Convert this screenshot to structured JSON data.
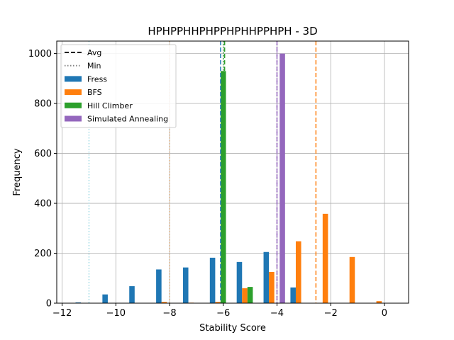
{
  "chart_data": {
    "type": "bar",
    "title": "HPHPPHHPHPPHPHHPPHPH - 3D",
    "xlabel": "Stability Score",
    "ylabel": "Frequency",
    "xlim": [
      -12.2,
      0.9
    ],
    "ylim": [
      0,
      1050
    ],
    "xticks": [
      -12,
      -10,
      -8,
      -6,
      -4,
      -2,
      0
    ],
    "xtick_labels": [
      "−12",
      "−10",
      "−8",
      "−6",
      "−4",
      "−2",
      "0"
    ],
    "yticks": [
      0,
      200,
      400,
      600,
      800,
      1000
    ],
    "ytick_labels": [
      "0",
      "200",
      "400",
      "600",
      "800",
      "1000"
    ],
    "grid": true,
    "legend_position": "top-left",
    "legend": {
      "avg_label": "Avg",
      "min_label": "Min"
    },
    "series": [
      {
        "name": "Fress",
        "color": "#1f77b4",
        "bars": [
          {
            "x": -11.4,
            "y": 3
          },
          {
            "x": -10.4,
            "y": 35
          },
          {
            "x": -9.4,
            "y": 68
          },
          {
            "x": -8.4,
            "y": 135
          },
          {
            "x": -7.4,
            "y": 143
          },
          {
            "x": -6.4,
            "y": 182
          },
          {
            "x": -5.4,
            "y": 165
          },
          {
            "x": -4.4,
            "y": 205
          },
          {
            "x": -3.4,
            "y": 63
          }
        ],
        "avg": -6.1,
        "min": -11.0,
        "avg_color": "#1f77b4",
        "min_color": "#9edae5"
      },
      {
        "name": "BFS",
        "color": "#ff7f0e",
        "bars": [
          {
            "x": -8.2,
            "y": 5
          },
          {
            "x": -7.2,
            "y": 2
          },
          {
            "x": -6.2,
            "y": 5
          },
          {
            "x": -5.2,
            "y": 60
          },
          {
            "x": -4.2,
            "y": 125
          },
          {
            "x": -3.2,
            "y": 248
          },
          {
            "x": -2.2,
            "y": 358
          },
          {
            "x": -1.2,
            "y": 185
          },
          {
            "x": -0.2,
            "y": 8
          }
        ],
        "avg": -2.55,
        "min": -8.0,
        "avg_color": "#ff7f0e",
        "min_color": "#e0b080"
      },
      {
        "name": "Hill Climber",
        "color": "#2ca02c",
        "bars": [
          {
            "x": -6.0,
            "y": 930
          },
          {
            "x": -5.0,
            "y": 65
          }
        ],
        "avg": -5.95,
        "min": -6.0,
        "avg_color": "#2ca02c",
        "min_color": "#2ca02c"
      },
      {
        "name": "Simulated Annealing",
        "color": "#9467bd",
        "bars": [
          {
            "x": -3.8,
            "y": 1000
          }
        ],
        "avg": -4.0,
        "min": -4.0,
        "avg_color": "#9467bd",
        "min_color": "#9467bd"
      }
    ]
  }
}
